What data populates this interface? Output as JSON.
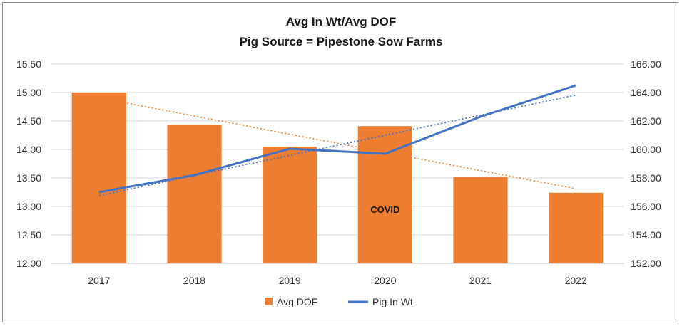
{
  "chart_data": {
    "type": "bar",
    "title": "Avg In Wt/Avg DOF",
    "subtitle": "Pig Source = Pipestone Sow Farms",
    "categories": [
      "2017",
      "2018",
      "2019",
      "2020",
      "2021",
      "2022"
    ],
    "series": [
      {
        "name": "Avg DOF",
        "type": "bar",
        "axis": "left",
        "color": "#ED7D31",
        "values": [
          15.0,
          14.43,
          14.05,
          14.41,
          13.52,
          13.24
        ]
      },
      {
        "name": "Pig In Wt",
        "type": "line",
        "axis": "right",
        "color": "#4472C4",
        "values": [
          157.0,
          158.2,
          160.05,
          159.7,
          162.3,
          164.5
        ]
      }
    ],
    "trendlines": [
      {
        "series": "Avg DOF",
        "style": "dotted",
        "color": "#ED7D31"
      },
      {
        "series": "Pig In Wt",
        "style": "dotted",
        "color": "#4472C4"
      }
    ],
    "y_left": {
      "ylim": [
        12.0,
        15.5
      ],
      "ticks": [
        "12.00",
        "12.50",
        "13.00",
        "13.50",
        "14.00",
        "14.50",
        "15.00",
        "15.50"
      ]
    },
    "y_right": {
      "ylim": [
        152.0,
        166.0
      ],
      "ticks": [
        "152.00",
        "154.00",
        "156.00",
        "158.00",
        "160.00",
        "162.00",
        "164.00",
        "166.00"
      ]
    },
    "annotations": [
      {
        "text": "COVID",
        "category": "2020"
      }
    ],
    "legend_position": "bottom",
    "grid": true
  }
}
